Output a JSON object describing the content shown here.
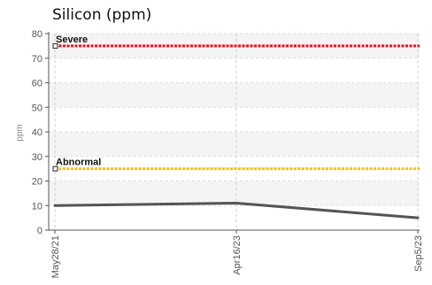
{
  "chart_data": {
    "type": "line",
    "title": "Silicon (ppm)",
    "xlabel": "",
    "ylabel": "ppm",
    "ylim": [
      0,
      80
    ],
    "yticks": [
      0,
      10,
      20,
      30,
      40,
      50,
      60,
      70,
      80
    ],
    "categories": [
      "May28/21",
      "Apr16/23",
      "Sep5/23"
    ],
    "series": [
      {
        "values": [
          10,
          11,
          5
        ],
        "color": "#555555"
      }
    ],
    "thresholds": [
      {
        "label": "Severe",
        "value": 75,
        "color": "#e8141c"
      },
      {
        "label": "Abnormal",
        "value": 25,
        "color": "#f5c20b"
      }
    ],
    "grid": true,
    "legend": "none"
  }
}
